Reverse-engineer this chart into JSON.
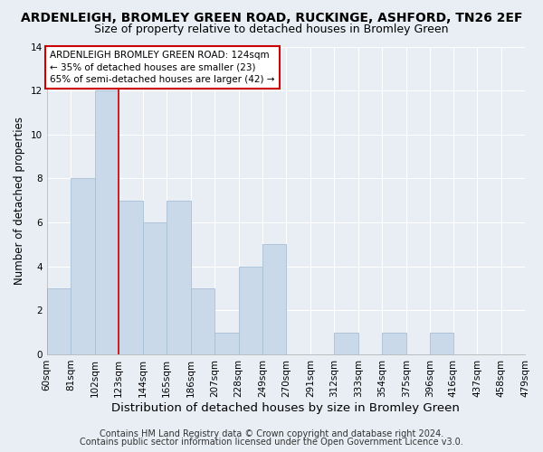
{
  "title": "ARDENLEIGH, BROMLEY GREEN ROAD, RUCKINGE, ASHFORD, TN26 2EF",
  "subtitle": "Size of property relative to detached houses in Bromley Green",
  "xlabel": "Distribution of detached houses by size in Bromley Green",
  "ylabel": "Number of detached properties",
  "bar_edges": [
    60,
    81,
    102,
    123,
    144,
    165,
    186,
    207,
    228,
    249,
    270,
    291,
    312,
    333,
    354,
    375,
    396,
    416,
    437,
    458,
    479
  ],
  "bar_heights": [
    3,
    8,
    12,
    7,
    6,
    7,
    3,
    1,
    4,
    5,
    0,
    0,
    1,
    0,
    1,
    0,
    1,
    0,
    0,
    0
  ],
  "bar_color": "#c9d9ea",
  "bar_edge_color": "#a8bfd4",
  "vline_x": 123,
  "vline_color": "#cc0000",
  "ylim": [
    0,
    14
  ],
  "yticks": [
    0,
    2,
    4,
    6,
    8,
    10,
    12,
    14
  ],
  "annotation_text": "ARDENLEIGH BROMLEY GREEN ROAD: 124sqm\n← 35% of detached houses are smaller (23)\n65% of semi-detached houses are larger (42) →",
  "annotation_box_color": "#ffffff",
  "annotation_box_edge": "#cc0000",
  "tick_labels": [
    "60sqm",
    "81sqm",
    "102sqm",
    "123sqm",
    "144sqm",
    "165sqm",
    "186sqm",
    "207sqm",
    "228sqm",
    "249sqm",
    "270sqm",
    "291sqm",
    "312sqm",
    "333sqm",
    "354sqm",
    "375sqm",
    "396sqm",
    "416sqm",
    "437sqm",
    "458sqm",
    "479sqm"
  ],
  "footer_line1": "Contains HM Land Registry data © Crown copyright and database right 2024.",
  "footer_line2": "Contains public sector information licensed under the Open Government Licence v3.0.",
  "background_color": "#e8eef4",
  "plot_bg_color": "#e8eef4",
  "grid_color": "#ffffff",
  "title_fontsize": 10,
  "subtitle_fontsize": 9,
  "xlabel_fontsize": 9.5,
  "ylabel_fontsize": 8.5,
  "tick_fontsize": 7.5,
  "footer_fontsize": 7,
  "ann_fontsize": 7.5
}
